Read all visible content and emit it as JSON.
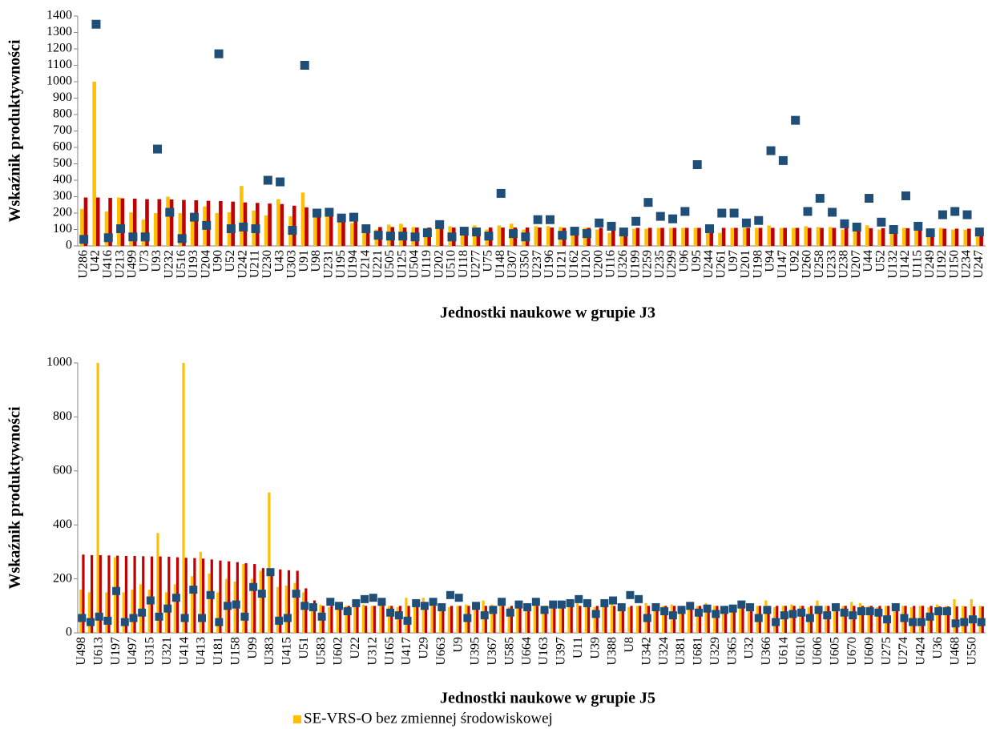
{
  "chart_data": [
    {
      "type": "bar",
      "xlabel": "Jednostki naukowe w grupie J3",
      "ylabel": "Wskaźnik produktywności",
      "categories": [
        "U286",
        "U42",
        "U416",
        "U213",
        "U499",
        "U73",
        "U93",
        "U232",
        "U516",
        "U193",
        "U204",
        "U90",
        "U52",
        "U242",
        "U211",
        "U230",
        "U43",
        "U303",
        "U91",
        "U98",
        "U231",
        "U195",
        "U194",
        "U214",
        "U221",
        "U505",
        "U125",
        "U504",
        "U119",
        "U202",
        "U510",
        "U118",
        "U277",
        "U75",
        "U148",
        "U307",
        "U350",
        "U237",
        "U196",
        "U121",
        "U162",
        "U120",
        "U200",
        "U116",
        "U326",
        "U199",
        "U259",
        "U235",
        "U299",
        "U96",
        "U95",
        "U244",
        "U261",
        "U97",
        "U201",
        "U198",
        "U94",
        "U147",
        "U92",
        "U260",
        "U258",
        "U233",
        "U238",
        "U207",
        "U44",
        "U52",
        "U132",
        "U142",
        "U115",
        "U249",
        "U192",
        "U150",
        "U234",
        "U247"
      ],
      "series": [
        {
          "color": "#ffc000",
          "values": [
            225,
            1000,
            210,
            295,
            205,
            160,
            200,
            300,
            200,
            150,
            240,
            200,
            205,
            365,
            215,
            185,
            285,
            180,
            325,
            190,
            185,
            150,
            140,
            85,
            100,
            130,
            135,
            115,
            110,
            110,
            120,
            100,
            125,
            100,
            125,
            135,
            100,
            120,
            120,
            115,
            110,
            110,
            100,
            80,
            105,
            105,
            105,
            110,
            110,
            110,
            110,
            110,
            80,
            110,
            110,
            110,
            125,
            110,
            110,
            120,
            115,
            115,
            100,
            90,
            125,
            100,
            110,
            110,
            110,
            55,
            110,
            100,
            100,
            100
          ]
        },
        {
          "color": "#c00000",
          "values": [
            295,
            295,
            293,
            290,
            288,
            285,
            285,
            283,
            280,
            278,
            275,
            273,
            270,
            265,
            262,
            258,
            255,
            245,
            235,
            200,
            190,
            175,
            155,
            115,
            115,
            115,
            112,
            112,
            112,
            112,
            112,
            112,
            112,
            112,
            112,
            112,
            112,
            112,
            112,
            110,
            110,
            110,
            110,
            110,
            110,
            110,
            110,
            110,
            110,
            110,
            110,
            110,
            110,
            110,
            110,
            110,
            110,
            110,
            110,
            110,
            110,
            110,
            110,
            110,
            108,
            108,
            108,
            108,
            108,
            105,
            105,
            105,
            105,
            60
          ]
        },
        {
          "color": "#1f4e79",
          "style": "marker",
          "values": [
            40,
            1350,
            50,
            105,
            55,
            55,
            590,
            205,
            45,
            175,
            125,
            1170,
            105,
            115,
            105,
            400,
            390,
            95,
            1100,
            200,
            205,
            170,
            175,
            105,
            65,
            60,
            60,
            55,
            80,
            130,
            55,
            90,
            85,
            60,
            320,
            75,
            55,
            160,
            160,
            65,
            90,
            75,
            140,
            120,
            85,
            150,
            265,
            180,
            165,
            210,
            495,
            105,
            200,
            200,
            140,
            155,
            580,
            520,
            765,
            210,
            290,
            205,
            135,
            115,
            290,
            145,
            100,
            305,
            120,
            80,
            190,
            210,
            190,
            85
          ]
        }
      ],
      "ylim": [
        0,
        1400
      ],
      "yticks": [
        0,
        100,
        200,
        300,
        400,
        500,
        600,
        700,
        800,
        900,
        1000,
        1100,
        1200,
        1300,
        1400
      ]
    },
    {
      "type": "bar",
      "xlabel": "Jednostki naukowe w grupie J5",
      "ylabel": "Wskaźnik produktywności",
      "categories": [
        "U498",
        null,
        "U613",
        null,
        "U197",
        null,
        "U497",
        null,
        "U315",
        null,
        "U321",
        null,
        "U414",
        null,
        "U413",
        null,
        "U181",
        null,
        "U158",
        null,
        "U99",
        null,
        "U383",
        null,
        "U415",
        null,
        "U51",
        null,
        "U583",
        null,
        "U602",
        null,
        "U22",
        null,
        "U312",
        null,
        "U165",
        null,
        "U417",
        null,
        "U29",
        null,
        "U663",
        null,
        "U9",
        null,
        "U395",
        null,
        "U367",
        null,
        "U585",
        null,
        "U664",
        null,
        "U163",
        null,
        "U397",
        null,
        "U11",
        null,
        "U39",
        null,
        "U388",
        null,
        "U8",
        null,
        "U342",
        null,
        "U324",
        null,
        "U381",
        null,
        "U681",
        null,
        "U329",
        null,
        "U365",
        null,
        "U32",
        null,
        "U366",
        null,
        "U614",
        null,
        "U610",
        null,
        "U606",
        null,
        "U605",
        null,
        "U670",
        null,
        "U609",
        null,
        "U275",
        null,
        "U274",
        null,
        "U424",
        null,
        "U36",
        null,
        "U468",
        null,
        "U550",
        null
      ],
      "series": [
        {
          "name": "SE-VRS-O bez zmiennej środowiskowej",
          "color": "#ffc000",
          "values": [
            160,
            150,
            1000,
            150,
            280,
            150,
            160,
            180,
            160,
            370,
            150,
            180,
            1000,
            210,
            300,
            220,
            150,
            200,
            190,
            255,
            200,
            230,
            520,
            170,
            175,
            185,
            150,
            100,
            105,
            95,
            110,
            100,
            95,
            105,
            100,
            120,
            100,
            95,
            130,
            105,
            130,
            100,
            110,
            95,
            100,
            105,
            100,
            120,
            105,
            110,
            95,
            100,
            110,
            105,
            100,
            110,
            100,
            105,
            115,
            100,
            95,
            110,
            105,
            100,
            95,
            100,
            110,
            95,
            100,
            105,
            100,
            95,
            100,
            110,
            100,
            95,
            105,
            100,
            95,
            100,
            120,
            95,
            100,
            105,
            100,
            95,
            120,
            100,
            95,
            100,
            115,
            110,
            100,
            95,
            100,
            105,
            100,
            95,
            100,
            95,
            105,
            100,
            125,
            100,
            125,
            100
          ]
        },
        {
          "color": "#c00000",
          "values": [
            290,
            288,
            288,
            287,
            286,
            285,
            285,
            284,
            283,
            283,
            282,
            280,
            278,
            277,
            275,
            272,
            268,
            265,
            262,
            258,
            255,
            240,
            238,
            235,
            232,
            230,
            165,
            120,
            100,
            100,
            100,
            100,
            100,
            100,
            100,
            100,
            100,
            100,
            100,
            100,
            100,
            100,
            100,
            100,
            100,
            100,
            100,
            100,
            100,
            100,
            100,
            100,
            100,
            100,
            100,
            100,
            100,
            100,
            100,
            100,
            100,
            100,
            100,
            100,
            100,
            100,
            100,
            100,
            100,
            100,
            100,
            100,
            100,
            100,
            100,
            100,
            100,
            100,
            100,
            100,
            100,
            100,
            100,
            100,
            100,
            100,
            100,
            100,
            100,
            100,
            100,
            100,
            100,
            100,
            100,
            100,
            100,
            100,
            100,
            100,
            98,
            98,
            98,
            98,
            98,
            98
          ]
        },
        {
          "color": "#1f4e79",
          "style": "marker",
          "values": [
            55,
            40,
            60,
            45,
            155,
            40,
            55,
            75,
            120,
            60,
            90,
            130,
            55,
            160,
            55,
            140,
            40,
            100,
            105,
            60,
            170,
            145,
            225,
            45,
            55,
            145,
            100,
            95,
            60,
            115,
            100,
            80,
            110,
            125,
            130,
            115,
            75,
            65,
            45,
            110,
            100,
            115,
            95,
            140,
            130,
            55,
            100,
            65,
            85,
            115,
            75,
            105,
            95,
            115,
            85,
            105,
            105,
            110,
            125,
            110,
            70,
            110,
            120,
            95,
            140,
            125,
            55,
            95,
            80,
            65,
            85,
            100,
            75,
            90,
            70,
            85,
            90,
            105,
            95,
            55,
            85,
            40,
            65,
            70,
            75,
            55,
            85,
            65,
            95,
            75,
            65,
            80,
            80,
            75,
            50,
            95,
            55,
            40,
            40,
            60,
            80,
            80,
            35,
            40,
            50,
            40
          ]
        }
      ],
      "ylim": [
        0,
        1000
      ],
      "yticks": [
        0,
        200,
        400,
        600,
        800,
        1000
      ],
      "legend": "bottom"
    }
  ]
}
